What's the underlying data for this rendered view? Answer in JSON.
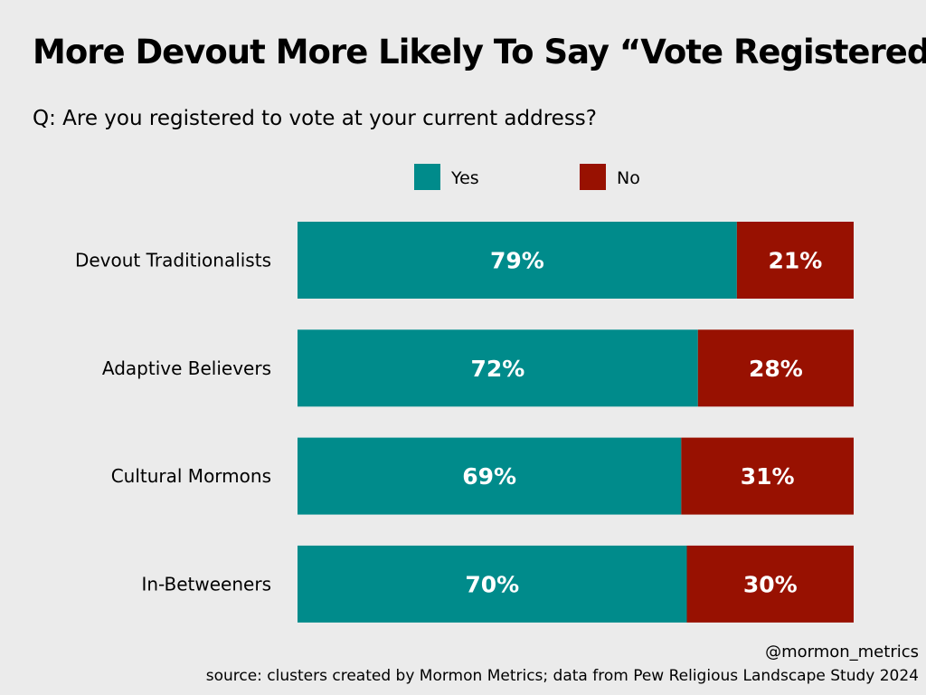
{
  "title": "More Devout More Likely To Say “Vote Registered”",
  "subtitle": "Q: Are you registered to vote at your current address?",
  "handle": "@mormon_metrics",
  "source": "source: clusters created by Mormon Metrics; data from Pew Religious Landscape Study 2024",
  "colors": {
    "yes": "#008b8b",
    "no": "#981101",
    "background": "#ebebeb"
  },
  "chart_data": {
    "type": "bar",
    "orientation": "horizontal",
    "stacked": true,
    "title": "More Devout More Likely To Say “Vote Registered”",
    "subtitle": "Q: Are you registered to vote at your current address?",
    "xlabel": "",
    "ylabel": "",
    "xlim": [
      0,
      100
    ],
    "grid": false,
    "legend_position": "top",
    "categories": [
      "Devout Traditionalists",
      "Adaptive Believers",
      "Cultural Mormons",
      "In-Betweeners"
    ],
    "series": [
      {
        "name": "Yes",
        "values": [
          79,
          72,
          69,
          70
        ],
        "labels": [
          "79%",
          "72%",
          "69%",
          "70%"
        ]
      },
      {
        "name": "No",
        "values": [
          21,
          28,
          31,
          30
        ],
        "labels": [
          "21%",
          "28%",
          "31%",
          "30%"
        ]
      }
    ]
  }
}
